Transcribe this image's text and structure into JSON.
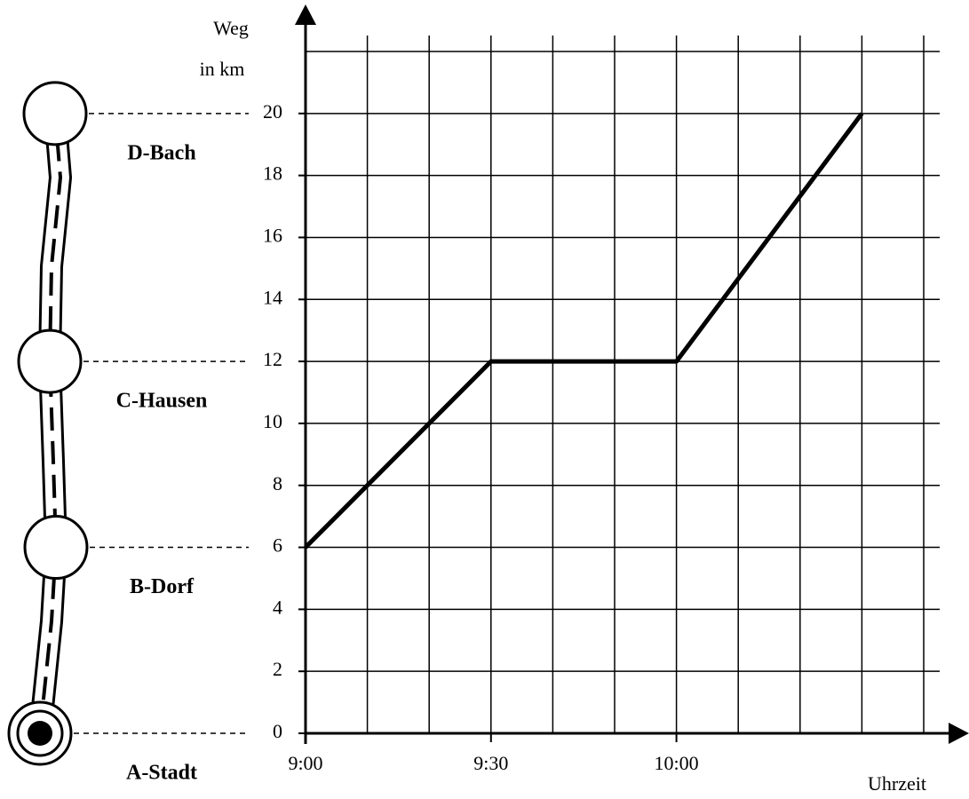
{
  "chart_data": {
    "type": "line",
    "ylabel": [
      "Weg",
      "in km"
    ],
    "xlabel": "Uhrzeit",
    "x": [
      540,
      570,
      600,
      630
    ],
    "series": [
      {
        "color": "#000000",
        "values": [
          6,
          12,
          12,
          20
        ]
      }
    ],
    "xlim": [
      540,
      640
    ],
    "ylim": [
      0,
      22
    ],
    "xticks": [
      {
        "value": 540,
        "label": "9:00"
      },
      {
        "value": 570,
        "label": "9:30"
      },
      {
        "value": 600,
        "label": "10:00"
      }
    ],
    "yticks": [
      0,
      2,
      4,
      6,
      8,
      10,
      12,
      14,
      16,
      18,
      20
    ],
    "xgrid": [
      540,
      550,
      560,
      570,
      580,
      590,
      600,
      610,
      620,
      630,
      640
    ],
    "ygrid": [
      2,
      4,
      6,
      8,
      10,
      12,
      14,
      16,
      18,
      20,
      22
    ],
    "places": [
      {
        "name": "A-Stadt",
        "km": 0
      },
      {
        "name": "B-Dorf",
        "km": 6
      },
      {
        "name": "C-Hausen",
        "km": 12
      },
      {
        "name": "D-Bach",
        "km": 20
      }
    ]
  }
}
